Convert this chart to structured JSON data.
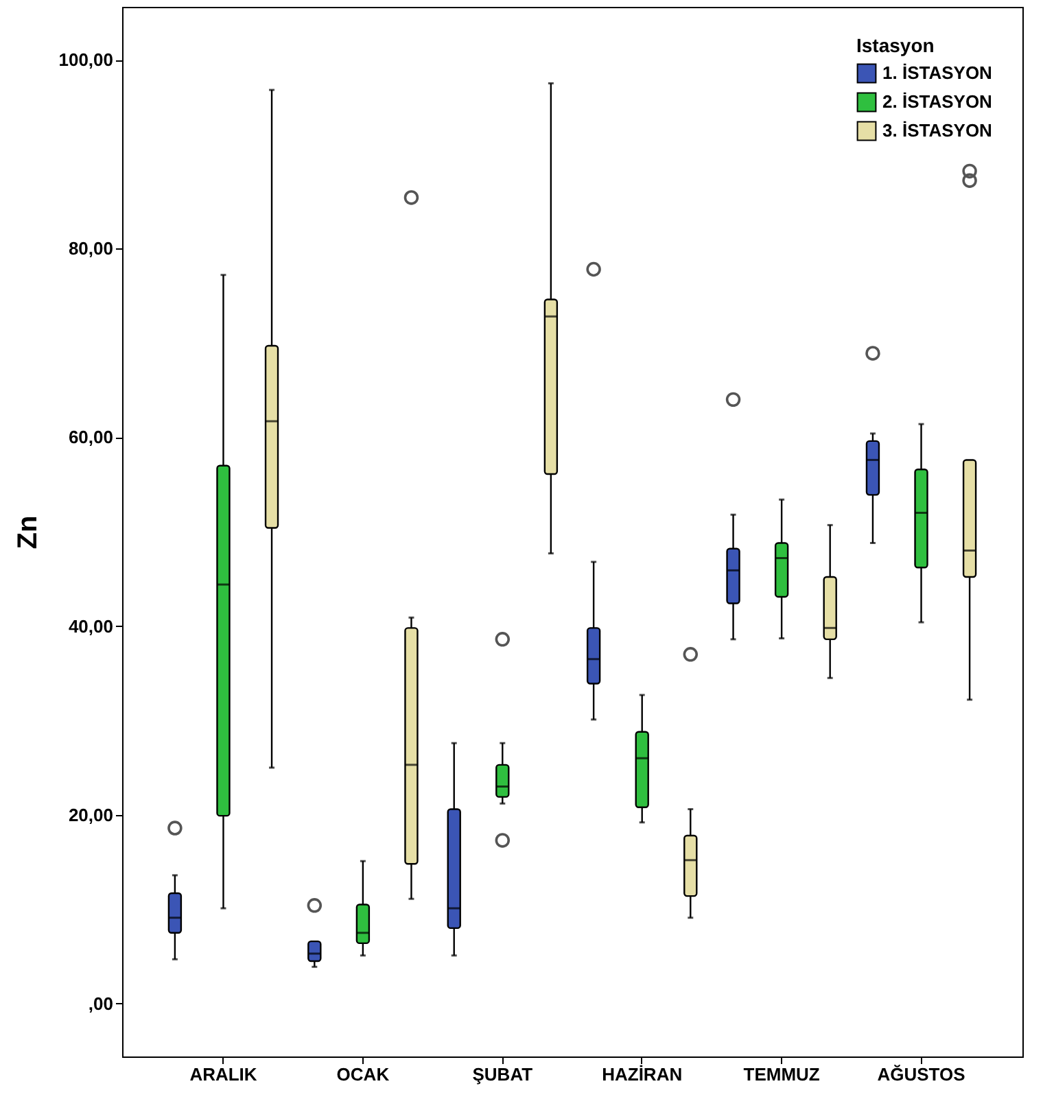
{
  "chart_data": {
    "type": "box",
    "ylabel": "Zn",
    "legend_title": "Istasyon",
    "legend": "top right",
    "categories": [
      "ARALIK",
      "OCAK",
      "ŞUBAT",
      "HAZİRAN",
      "TEMMUZ",
      "AĞUSTOS"
    ],
    "ylim": [
      -5.6,
      105.6
    ],
    "yticks": [
      {
        "value": 0,
        "label": ",00"
      },
      {
        "value": 20,
        "label": "20,00"
      },
      {
        "value": 40,
        "label": "40,00"
      },
      {
        "value": 60,
        "label": "60,00"
      },
      {
        "value": 80,
        "label": "80,00"
      },
      {
        "value": 100,
        "label": "100,00"
      }
    ],
    "series": [
      {
        "name": "1. İSTASYON",
        "color": "#3b55b5",
        "boxes": [
          {
            "low": 4.7,
            "q1": 7.5,
            "median": 9.1,
            "q3": 11.7,
            "high": 13.6,
            "outliers": [
              18.6
            ]
          },
          {
            "low": 3.9,
            "q1": 4.5,
            "median": 5.3,
            "q3": 6.6,
            "high": 6.6,
            "outliers": [
              10.4
            ]
          },
          {
            "low": 5.1,
            "q1": 8.0,
            "median": 10.1,
            "q3": 20.6,
            "high": 27.6
          },
          {
            "low": 30.1,
            "q1": 33.9,
            "median": 36.5,
            "q3": 39.8,
            "high": 46.8,
            "outliers": [
              77.8
            ]
          },
          {
            "low": 38.6,
            "q1": 42.4,
            "median": 45.9,
            "q3": 48.2,
            "high": 51.8,
            "outliers": [
              64.0
            ]
          },
          {
            "low": 48.8,
            "q1": 53.9,
            "median": 57.6,
            "q3": 59.6,
            "high": 60.4,
            "outliers": [
              68.9
            ]
          }
        ]
      },
      {
        "name": "2. İSTASYON",
        "color": "#2fbf3f",
        "boxes": [
          {
            "low": 10.1,
            "q1": 19.9,
            "median": 44.4,
            "q3": 57.0,
            "high": 77.2
          },
          {
            "low": 5.1,
            "q1": 6.4,
            "median": 7.5,
            "q3": 10.5,
            "high": 15.1
          },
          {
            "low": 21.2,
            "q1": 21.9,
            "median": 23.0,
            "q3": 25.3,
            "high": 27.6,
            "outliers": [
              38.6,
              17.3
            ]
          },
          {
            "low": 19.2,
            "q1": 20.8,
            "median": 26.0,
            "q3": 28.8,
            "high": 32.7
          },
          {
            "low": 38.7,
            "q1": 43.1,
            "median": 47.2,
            "q3": 48.8,
            "high": 53.4
          },
          {
            "low": 40.4,
            "q1": 46.2,
            "median": 52.0,
            "q3": 56.6,
            "high": 61.4
          }
        ]
      },
      {
        "name": "3. İSTASYON",
        "color": "#e6dfa6",
        "boxes": [
          {
            "low": 25.0,
            "q1": 50.4,
            "median": 61.7,
            "q3": 69.7,
            "high": 96.8
          },
          {
            "low": 11.1,
            "q1": 14.8,
            "median": 25.3,
            "q3": 39.8,
            "high": 40.9,
            "outliers": [
              85.4
            ]
          },
          {
            "low": 47.7,
            "q1": 56.1,
            "median": 72.8,
            "q3": 74.6,
            "high": 97.5
          },
          {
            "low": 9.1,
            "q1": 11.4,
            "median": 15.2,
            "q3": 17.8,
            "high": 20.6,
            "outliers": [
              37.0
            ]
          },
          {
            "low": 34.5,
            "q1": 38.6,
            "median": 39.8,
            "q3": 45.2,
            "high": 50.7
          },
          {
            "low": 32.2,
            "q1": 45.2,
            "median": 48.0,
            "q3": 57.6,
            "high": 57.6,
            "outliers": [
              87.2,
              88.2
            ]
          }
        ]
      }
    ]
  }
}
